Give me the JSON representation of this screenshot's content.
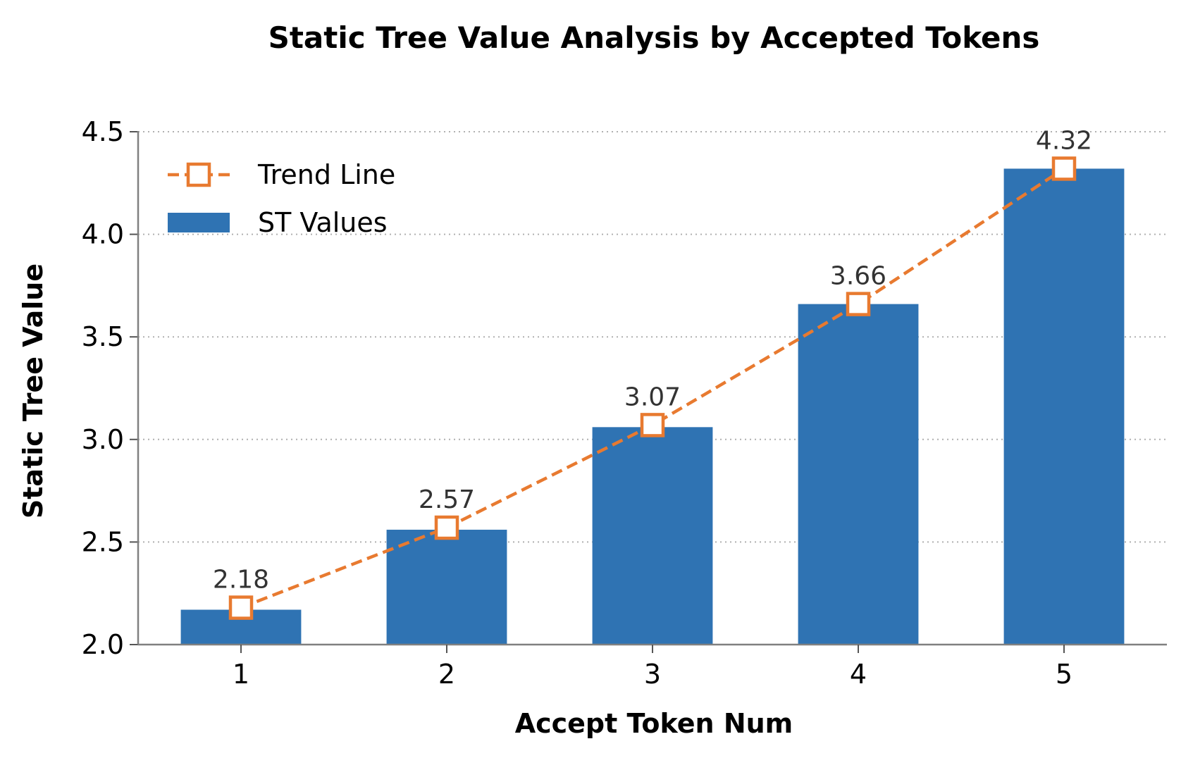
{
  "chart_data": {
    "type": "bar",
    "title": "Static Tree Value Analysis by Accepted Tokens",
    "xlabel": "Accept Token Num",
    "ylabel": "Static Tree Value",
    "categories": [
      "1",
      "2",
      "3",
      "4",
      "5"
    ],
    "ylim": [
      2.0,
      4.5
    ],
    "yticks": [
      "2.0",
      "2.5",
      "3.0",
      "3.5",
      "4.0",
      "4.5"
    ],
    "grid": "horizontal-dotted",
    "legend_position": "top-left",
    "series": [
      {
        "name": "ST Values",
        "kind": "bar",
        "color": "#2f73b3",
        "values": [
          2.17,
          2.56,
          3.06,
          3.66,
          4.32
        ]
      },
      {
        "name": "Trend Line",
        "kind": "line",
        "color": "#e87a30",
        "marker": "square",
        "style": "dashed",
        "values": [
          2.18,
          2.57,
          3.07,
          3.66,
          4.32
        ]
      }
    ],
    "data_labels": [
      "2.18",
      "2.57",
      "3.07",
      "3.66",
      "4.32"
    ]
  }
}
